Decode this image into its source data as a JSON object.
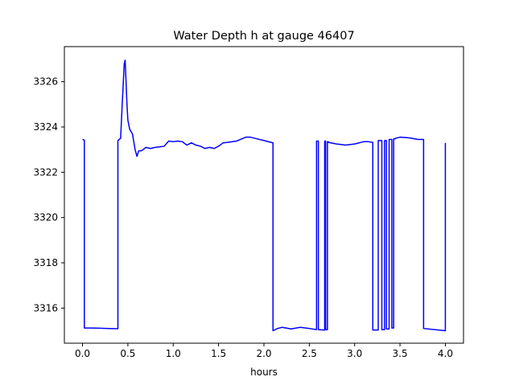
{
  "chart_data": {
    "type": "line",
    "title": "Water Depth h at gauge 46407",
    "xlabel": "hours",
    "ylabel": "",
    "xlim": [
      -0.2,
      4.2
    ],
    "ylim": [
      3314.45,
      3327.55
    ],
    "xticks": [
      0.0,
      0.5,
      1.0,
      1.5,
      2.0,
      2.5,
      3.0,
      3.5,
      4.0
    ],
    "xtick_labels": [
      "0.0",
      "0.5",
      "1.0",
      "1.5",
      "2.0",
      "2.5",
      "3.0",
      "3.5",
      "4.0"
    ],
    "yticks": [
      3316,
      3318,
      3320,
      3322,
      3324,
      3326
    ],
    "ytick_labels": [
      "3316",
      "3318",
      "3320",
      "3322",
      "3324",
      "3326"
    ],
    "grid": false,
    "series": [
      {
        "color": "#0000ff",
        "x": [
          0.0,
          0.02,
          0.02,
          0.1,
          0.2,
          0.3,
          0.39,
          0.39,
          0.42,
          0.44,
          0.46,
          0.47,
          0.48,
          0.49,
          0.5,
          0.52,
          0.55,
          0.58,
          0.6,
          0.62,
          0.65,
          0.7,
          0.75,
          0.8,
          0.85,
          0.9,
          0.95,
          1.0,
          1.05,
          1.1,
          1.15,
          1.2,
          1.25,
          1.3,
          1.35,
          1.4,
          1.45,
          1.5,
          1.55,
          1.6,
          1.7,
          1.8,
          1.85,
          1.9,
          2.0,
          2.1,
          2.1,
          2.15,
          2.2,
          2.3,
          2.4,
          2.5,
          2.58,
          2.58,
          2.6,
          2.6,
          2.67,
          2.67,
          2.68,
          2.68,
          2.7,
          2.7,
          2.71,
          2.71,
          2.8,
          2.9,
          3.0,
          3.1,
          3.15,
          3.2,
          3.2,
          3.26,
          3.26,
          3.3,
          3.3,
          3.33,
          3.33,
          3.35,
          3.35,
          3.38,
          3.38,
          3.41,
          3.41,
          3.43,
          3.43,
          3.45,
          3.45,
          3.5,
          3.6,
          3.7,
          3.76,
          3.76,
          4.0,
          4.0
        ],
        "y": [
          3323.45,
          3323.42,
          3315.12,
          3315.12,
          3315.11,
          3315.1,
          3315.09,
          3323.4,
          3323.5,
          3325.2,
          3326.8,
          3326.95,
          3326.0,
          3325.0,
          3324.3,
          3323.9,
          3323.7,
          3323.0,
          3322.7,
          3322.95,
          3322.95,
          3323.1,
          3323.05,
          3323.1,
          3323.12,
          3323.15,
          3323.38,
          3323.35,
          3323.38,
          3323.35,
          3323.2,
          3323.3,
          3323.2,
          3323.15,
          3323.05,
          3323.1,
          3323.05,
          3323.15,
          3323.3,
          3323.32,
          3323.38,
          3323.55,
          3323.55,
          3323.5,
          3323.4,
          3323.3,
          3315.0,
          3315.1,
          3315.15,
          3315.08,
          3315.15,
          3315.1,
          3315.05,
          3323.38,
          3323.38,
          3315.05,
          3315.03,
          3323.38,
          3323.38,
          3315.05,
          3315.05,
          3323.35,
          3323.35,
          3323.32,
          3323.25,
          3323.2,
          3323.25,
          3323.35,
          3323.35,
          3323.32,
          3315.03,
          3315.03,
          3323.4,
          3323.4,
          3315.05,
          3315.05,
          3323.4,
          3323.4,
          3315.08,
          3315.08,
          3323.45,
          3323.45,
          3315.12,
          3315.12,
          3323.48,
          3323.48,
          3323.5,
          3323.55,
          3323.52,
          3323.45,
          3323.45,
          3315.1,
          3315.0,
          3323.3
        ]
      }
    ]
  }
}
